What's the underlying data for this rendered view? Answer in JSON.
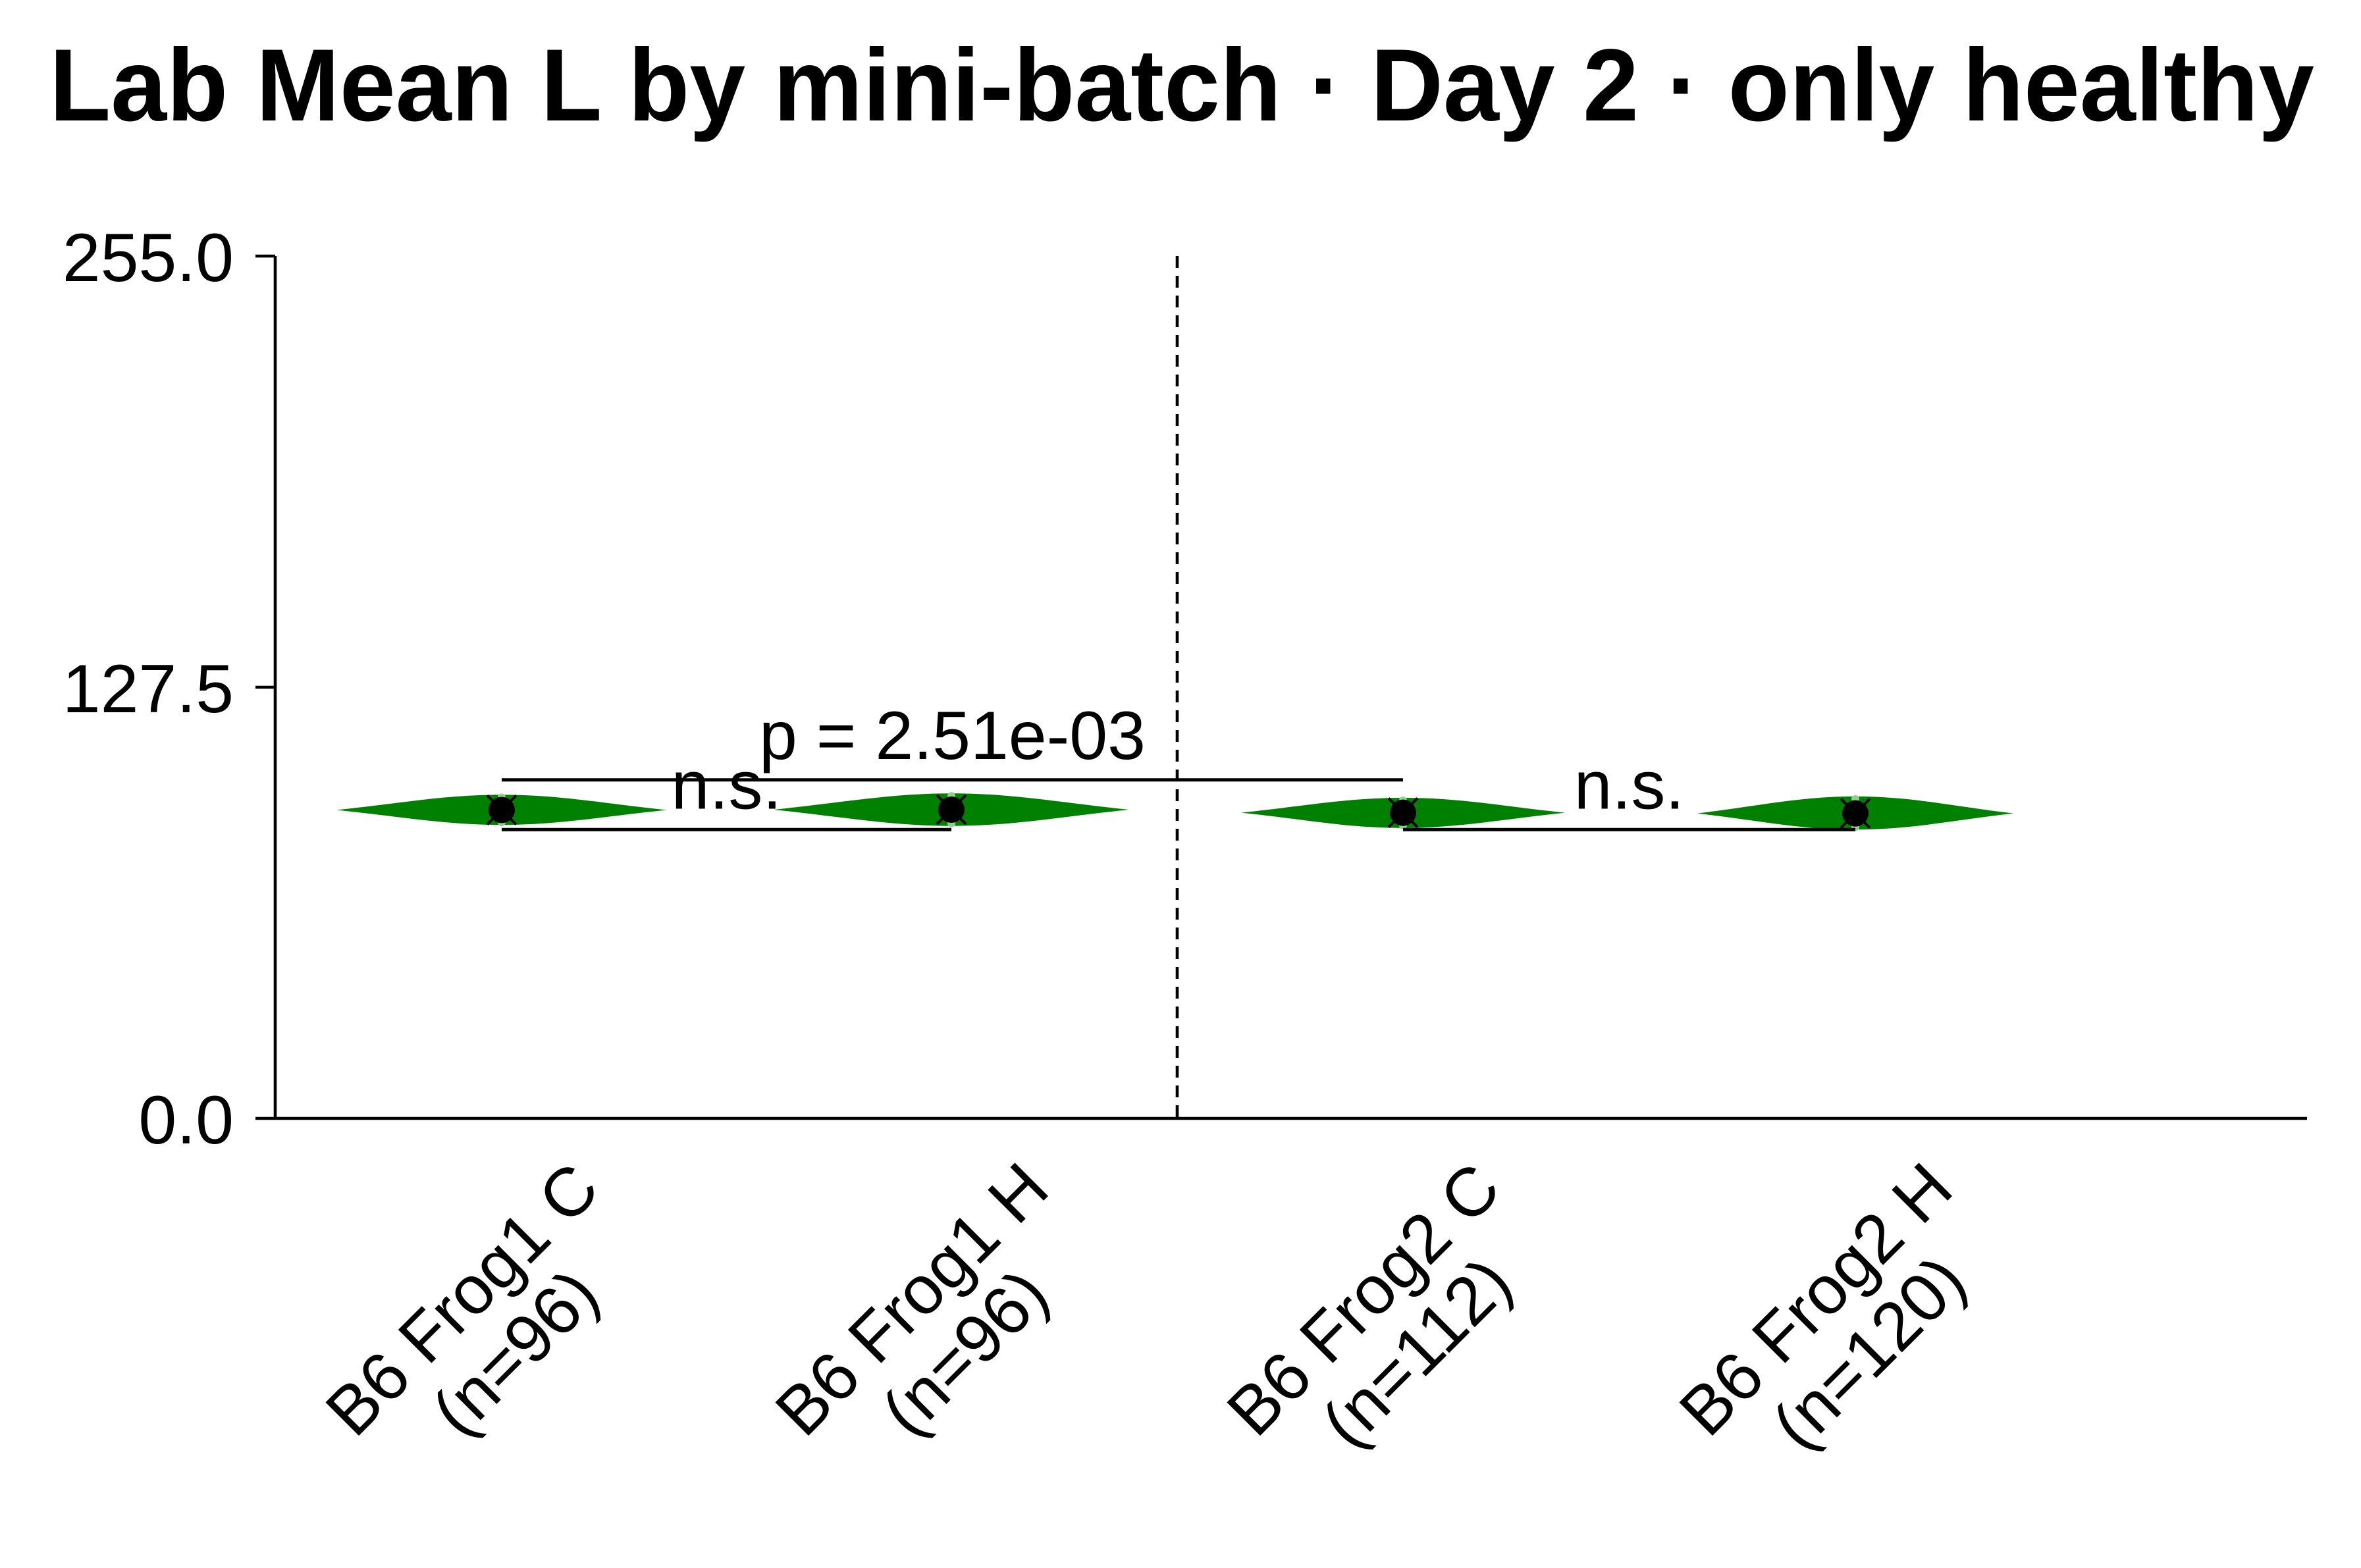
{
  "chart_data": {
    "type": "violin",
    "title": "Lab Mean L by mini-batch · Day 2 · only healthy",
    "categories": [
      "B6 Frog1 C",
      "B6 Frog1 H",
      "B6 Frog2 C",
      "B6 Frog2 H"
    ],
    "n_labels": [
      "(n=96)",
      "(n=96)",
      "(n=112)",
      "(n=120)"
    ],
    "values": [
      91.2,
      91.3,
      90.4,
      90.2
    ],
    "ranges": [
      [
        86.8,
        95.7
      ],
      [
        86.5,
        96.1
      ],
      [
        85.9,
        94.8
      ],
      [
        85.4,
        95.2
      ]
    ],
    "ylim": [
      0,
      255
    ],
    "yticks": [
      0,
      127.5,
      255
    ],
    "ytick_labels": [
      "0.0",
      "127.5",
      "255.0"
    ],
    "comparisons": [
      {
        "groups": [
          0,
          1
        ],
        "label": "n.s."
      },
      {
        "groups": [
          2,
          3
        ],
        "label": "n.s."
      },
      {
        "groups": [
          0,
          2
        ],
        "label": "p = 2.51e-03"
      }
    ],
    "divider_after_category": 1,
    "grid": false,
    "legend": "none",
    "colors": {
      "violin": "#008000",
      "mean_marker": "#000000",
      "points": "#8fd18f",
      "axis": "#000000"
    }
  }
}
